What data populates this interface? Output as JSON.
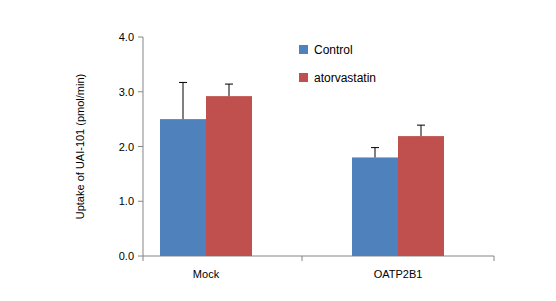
{
  "chart_data": {
    "type": "bar",
    "y_label": "Uptake of UAI-101 (pmol/min)",
    "categories": [
      "Mock",
      "OATP2B1"
    ],
    "series": [
      {
        "name": "Control",
        "color": "#4f81bd",
        "values": [
          2.5,
          1.8
        ],
        "errors": [
          0.67,
          0.18
        ]
      },
      {
        "name": "atorvastatin",
        "color": "#c0504d",
        "values": [
          2.92,
          2.19
        ],
        "errors": [
          0.22,
          0.2
        ]
      }
    ],
    "ylim": [
      0,
      4
    ],
    "yticks": [
      {
        "value": 0,
        "label": "0.0"
      },
      {
        "value": 1,
        "label": "1.0"
      },
      {
        "value": 2,
        "label": "2.0"
      },
      {
        "value": 3,
        "label": "3.0"
      },
      {
        "value": 4,
        "label": "4.0"
      }
    ],
    "grid": false,
    "legend": "top-right"
  }
}
